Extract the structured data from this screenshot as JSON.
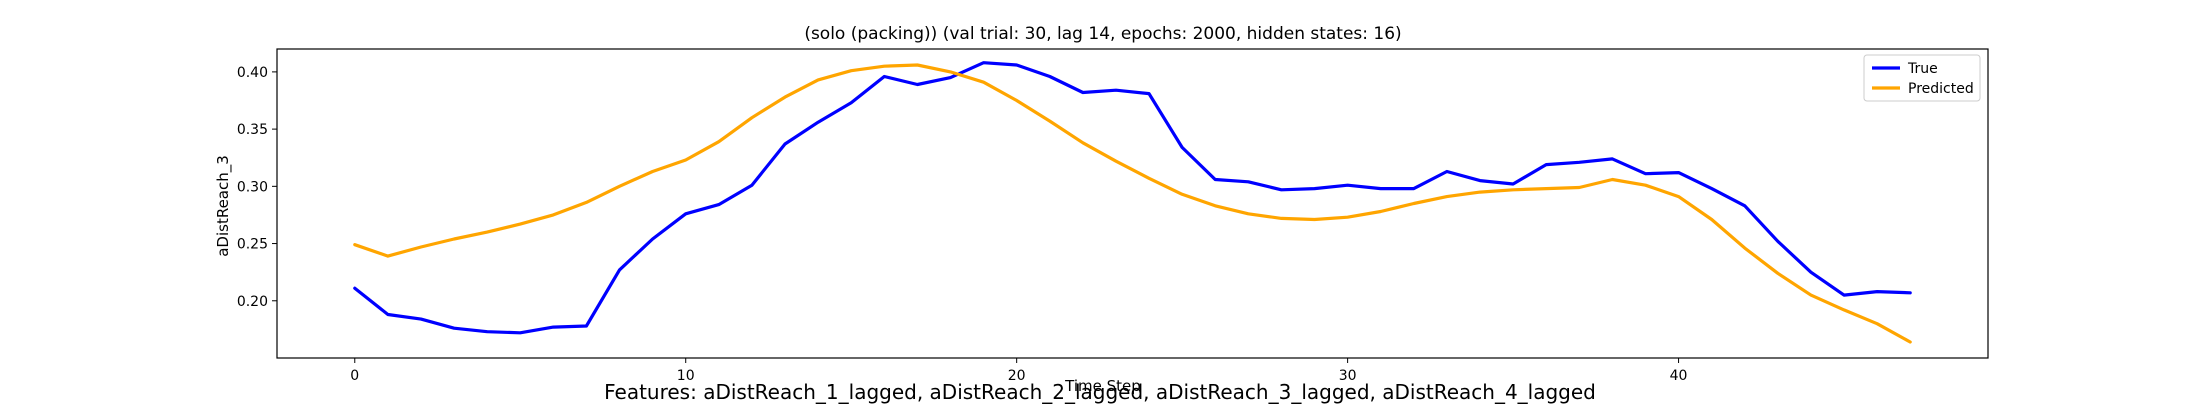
{
  "chart_data": {
    "type": "line",
    "title": "(solo (packing)) (val trial: 30, lag 14, epochs: 2000, hidden states: 16)",
    "xlabel": "Time Step",
    "ylabel": "aDistReach_3",
    "xlim": [
      -2.35,
      49.35
    ],
    "ylim": [
      0.15,
      0.42
    ],
    "xticks": [
      0,
      10,
      20,
      30,
      40
    ],
    "yticks": [
      0.2,
      0.25,
      0.3,
      0.35,
      0.4
    ],
    "legend": "top-right",
    "series": [
      {
        "name": "True",
        "color": "#0000ff",
        "x": [
          0,
          1,
          2,
          3,
          4,
          5,
          6,
          7,
          8,
          9,
          10,
          11,
          12,
          13,
          14,
          15,
          16,
          17,
          18,
          19,
          20,
          21,
          22,
          23,
          24,
          25,
          26,
          27,
          28,
          29,
          30,
          31,
          32,
          33,
          34,
          35,
          36,
          37,
          38,
          39,
          40,
          41,
          42,
          43,
          44,
          45,
          46,
          47
        ],
        "values": [
          0.211,
          0.188,
          0.184,
          0.176,
          0.173,
          0.172,
          0.177,
          0.178,
          0.227,
          0.254,
          0.276,
          0.284,
          0.301,
          0.337,
          0.356,
          0.373,
          0.396,
          0.389,
          0.395,
          0.408,
          0.406,
          0.396,
          0.382,
          0.384,
          0.381,
          0.334,
          0.306,
          0.304,
          0.297,
          0.298,
          0.301,
          0.298,
          0.298,
          0.313,
          0.305,
          0.302,
          0.319,
          0.321,
          0.324,
          0.311,
          0.312,
          0.298,
          0.283,
          0.252,
          0.225,
          0.205,
          0.208,
          0.207
        ]
      },
      {
        "name": "Predicted",
        "color": "#ffa500",
        "x": [
          0,
          1,
          2,
          3,
          4,
          5,
          6,
          7,
          8,
          9,
          10,
          11,
          12,
          13,
          14,
          15,
          16,
          17,
          18,
          19,
          20,
          21,
          22,
          23,
          24,
          25,
          26,
          27,
          28,
          29,
          30,
          31,
          32,
          33,
          34,
          35,
          36,
          37,
          38,
          39,
          40,
          41,
          42,
          43,
          44,
          45,
          46,
          47
        ],
        "values": [
          0.249,
          0.239,
          0.247,
          0.254,
          0.26,
          0.267,
          0.275,
          0.286,
          0.3,
          0.313,
          0.323,
          0.339,
          0.36,
          0.378,
          0.393,
          0.401,
          0.405,
          0.406,
          0.4,
          0.391,
          0.375,
          0.357,
          0.338,
          0.322,
          0.307,
          0.293,
          0.283,
          0.276,
          0.272,
          0.271,
          0.273,
          0.278,
          0.285,
          0.291,
          0.295,
          0.297,
          0.298,
          0.299,
          0.306,
          0.301,
          0.291,
          0.271,
          0.246,
          0.224,
          0.205,
          0.192,
          0.18,
          0.164
        ]
      }
    ]
  },
  "caption": "Features: aDistReach_1_lagged, aDistReach_2_lagged, aDistReach_3_lagged, aDistReach_4_lagged"
}
